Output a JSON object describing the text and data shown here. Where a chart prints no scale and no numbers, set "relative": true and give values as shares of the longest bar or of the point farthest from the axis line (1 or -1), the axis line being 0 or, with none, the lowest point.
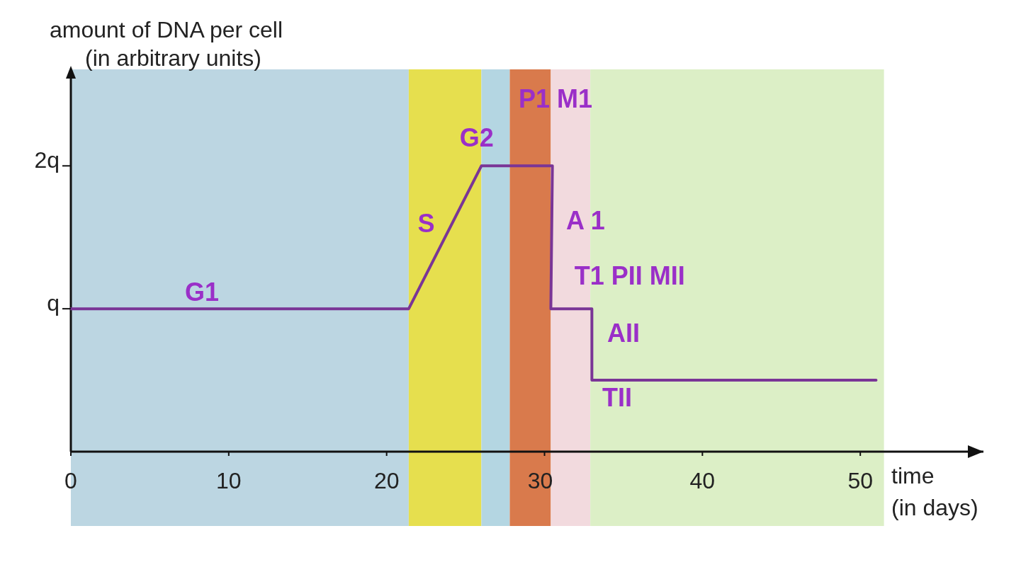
{
  "chart_data": {
    "type": "line",
    "relative": true,
    "xlabel": "time (in days)",
    "ylabel": "amount of DNA per cell (in arbitrary units)",
    "x": [
      0,
      21.4,
      26,
      30.5,
      30.4,
      33,
      33,
      51
    ],
    "series": [
      {
        "color": "#7a3596",
        "values": [
          0.5,
          0.5,
          1,
          1,
          0.5,
          0.5,
          0.25,
          0.25
        ]
      }
    ],
    "xlim": [
      0,
      57.8
    ],
    "xticks": [
      0,
      10,
      20,
      30,
      40,
      50
    ],
    "marker": "none",
    "line_style": "solid",
    "bands": [
      {
        "axis": "x",
        "from": 0,
        "to": 21.4,
        "color": "#bcd6e2"
      },
      {
        "axis": "x",
        "from": 21.4,
        "to": 26,
        "color": "#e6df4e"
      },
      {
        "axis": "x",
        "from": 26,
        "to": 27.8,
        "color": "#b4d6e2"
      },
      {
        "axis": "x",
        "from": 27.8,
        "to": 30.4,
        "color": "#d97a4c"
      },
      {
        "axis": "x",
        "from": 30.4,
        "to": 32.9,
        "color": "#f2dade"
      },
      {
        "axis": "x",
        "from": 32.9,
        "to": 51.5,
        "color": "#dcefc6"
      }
    ],
    "annotations": [
      "2q",
      "q",
      "G1",
      "S",
      "G2",
      "P1 M1",
      "A 1",
      "T1 PII MII",
      "AII",
      "TII"
    ]
  }
}
